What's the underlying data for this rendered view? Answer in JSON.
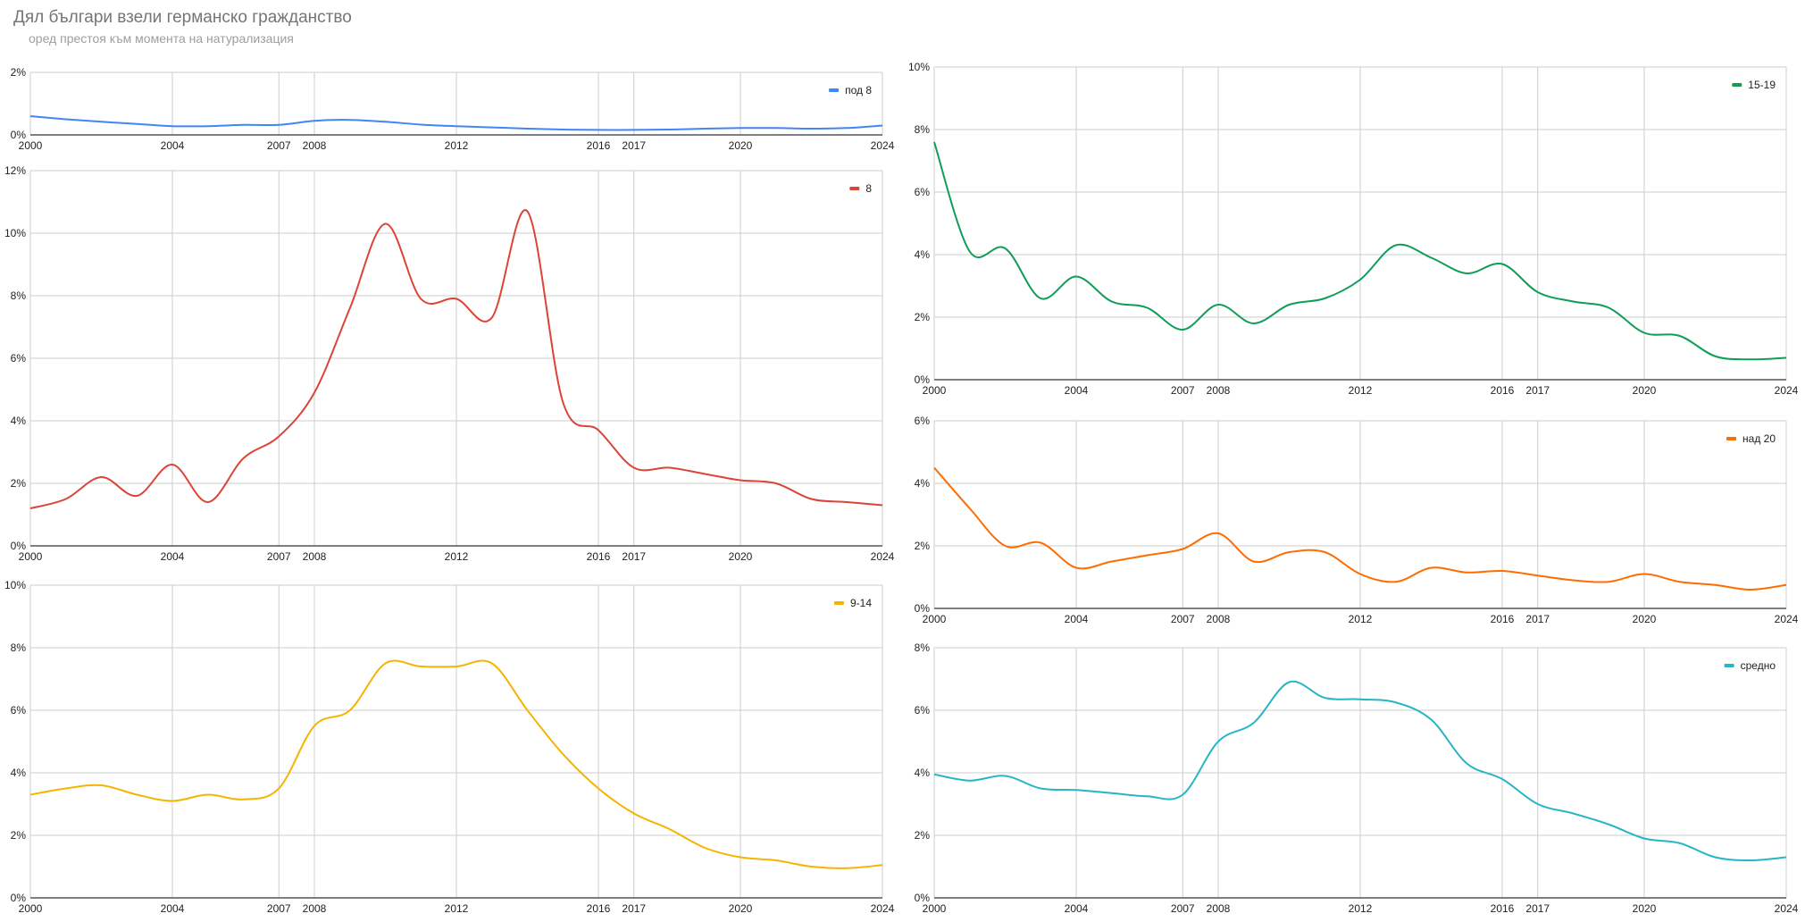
{
  "title": "Дял българи взели германско гражданство",
  "subtitle": "оред престоя към момента на натурализация",
  "colors": {
    "grid": "#cccccc",
    "axis": "#333333"
  },
  "chart_data": [
    {
      "type": "line",
      "x": [
        2000,
        2001,
        2002,
        2003,
        2004,
        2005,
        2006,
        2007,
        2008,
        2009,
        2010,
        2011,
        2012,
        2013,
        2014,
        2015,
        2016,
        2017,
        2018,
        2019,
        2020,
        2021,
        2022,
        2023,
        2024
      ],
      "xticks": [
        2000,
        2004,
        2007,
        2008,
        2012,
        2016,
        2017,
        2020,
        2024
      ],
      "ylim": [
        0,
        2
      ],
      "yticks": [
        0,
        2
      ],
      "series": [
        {
          "name": "под 8",
          "color": "#4285f4",
          "values": [
            0.6,
            0.5,
            0.42,
            0.35,
            0.28,
            0.28,
            0.32,
            0.32,
            0.45,
            0.48,
            0.42,
            0.33,
            0.28,
            0.24,
            0.2,
            0.17,
            0.16,
            0.16,
            0.17,
            0.2,
            0.22,
            0.22,
            0.2,
            0.22,
            0.3
          ]
        }
      ],
      "legend": "top-right"
    },
    {
      "type": "line",
      "x": [
        2000,
        2001,
        2002,
        2003,
        2004,
        2005,
        2006,
        2007,
        2008,
        2009,
        2010,
        2011,
        2012,
        2013,
        2014,
        2015,
        2016,
        2017,
        2018,
        2019,
        2020,
        2021,
        2022,
        2023,
        2024
      ],
      "xticks": [
        2000,
        2004,
        2007,
        2008,
        2012,
        2016,
        2017,
        2020,
        2024
      ],
      "ylim": [
        0,
        12
      ],
      "yticks": [
        0,
        2,
        4,
        6,
        8,
        10,
        12
      ],
      "series": [
        {
          "name": "8",
          "color": "#db4437",
          "values": [
            1.2,
            1.5,
            2.2,
            1.6,
            2.6,
            1.4,
            2.8,
            3.5,
            4.9,
            7.6,
            10.3,
            7.9,
            7.9,
            7.3,
            10.7,
            4.6,
            3.7,
            2.5,
            2.5,
            2.3,
            2.1,
            2.0,
            1.5,
            1.4,
            1.3
          ]
        }
      ],
      "legend": "top-right"
    },
    {
      "type": "line",
      "x": [
        2000,
        2001,
        2002,
        2003,
        2004,
        2005,
        2006,
        2007,
        2008,
        2009,
        2010,
        2011,
        2012,
        2013,
        2014,
        2015,
        2016,
        2017,
        2018,
        2019,
        2020,
        2021,
        2022,
        2023,
        2024
      ],
      "xticks": [
        2000,
        2004,
        2007,
        2008,
        2012,
        2016,
        2017,
        2020,
        2024
      ],
      "ylim": [
        0,
        10
      ],
      "yticks": [
        0,
        2,
        4,
        6,
        8,
        10
      ],
      "series": [
        {
          "name": "9-14",
          "color": "#f4b400",
          "values": [
            3.3,
            3.5,
            3.6,
            3.3,
            3.1,
            3.3,
            3.15,
            3.5,
            5.5,
            6.0,
            7.5,
            7.4,
            7.4,
            7.5,
            6.0,
            4.6,
            3.5,
            2.7,
            2.2,
            1.6,
            1.3,
            1.2,
            1.0,
            0.95,
            1.05
          ]
        }
      ],
      "legend": "top-right"
    },
    {
      "type": "line",
      "x": [
        2000,
        2001,
        2002,
        2003,
        2004,
        2005,
        2006,
        2007,
        2008,
        2009,
        2010,
        2011,
        2012,
        2013,
        2014,
        2015,
        2016,
        2017,
        2018,
        2019,
        2020,
        2021,
        2022,
        2023,
        2024
      ],
      "xticks": [
        2000,
        2004,
        2007,
        2008,
        2012,
        2016,
        2017,
        2020,
        2024
      ],
      "ylim": [
        0,
        10
      ],
      "yticks": [
        0,
        2,
        4,
        6,
        8,
        10
      ],
      "series": [
        {
          "name": "15-19",
          "color": "#0f9d58",
          "values": [
            7.6,
            4.1,
            4.2,
            2.6,
            3.3,
            2.5,
            2.3,
            1.6,
            2.4,
            1.8,
            2.4,
            2.6,
            3.2,
            4.3,
            3.9,
            3.4,
            3.7,
            2.8,
            2.5,
            2.3,
            1.5,
            1.4,
            0.75,
            0.65,
            0.7
          ]
        }
      ],
      "legend": "top-right"
    },
    {
      "type": "line",
      "x": [
        2000,
        2001,
        2002,
        2003,
        2004,
        2005,
        2006,
        2007,
        2008,
        2009,
        2010,
        2011,
        2012,
        2013,
        2014,
        2015,
        2016,
        2017,
        2018,
        2019,
        2020,
        2021,
        2022,
        2023,
        2024
      ],
      "xticks": [
        2000,
        2004,
        2007,
        2008,
        2012,
        2016,
        2017,
        2020,
        2024
      ],
      "ylim": [
        0,
        6
      ],
      "yticks": [
        0,
        2,
        4,
        6
      ],
      "series": [
        {
          "name": "над 20",
          "color": "#ff6d00",
          "values": [
            4.5,
            3.2,
            2.0,
            2.1,
            1.3,
            1.5,
            1.7,
            1.9,
            2.4,
            1.5,
            1.8,
            1.8,
            1.1,
            0.85,
            1.3,
            1.15,
            1.2,
            1.05,
            0.9,
            0.85,
            1.1,
            0.85,
            0.75,
            0.6,
            0.75
          ]
        }
      ],
      "legend": "top-right"
    },
    {
      "type": "line",
      "x": [
        2000,
        2001,
        2002,
        2003,
        2004,
        2005,
        2006,
        2007,
        2008,
        2009,
        2010,
        2011,
        2012,
        2013,
        2014,
        2015,
        2016,
        2017,
        2018,
        2019,
        2020,
        2021,
        2022,
        2023,
        2024
      ],
      "xticks": [
        2000,
        2004,
        2007,
        2008,
        2012,
        2016,
        2017,
        2020,
        2024
      ],
      "ylim": [
        0,
        8
      ],
      "yticks": [
        0,
        2,
        4,
        6,
        8
      ],
      "series": [
        {
          "name": "средно",
          "color": "#26b6c6",
          "values": [
            3.95,
            3.75,
            3.9,
            3.5,
            3.45,
            3.35,
            3.25,
            3.3,
            5.0,
            5.6,
            6.9,
            6.4,
            6.35,
            6.25,
            5.7,
            4.3,
            3.8,
            3.0,
            2.7,
            2.35,
            1.9,
            1.75,
            1.3,
            1.2,
            1.3
          ]
        }
      ],
      "legend": "top-right"
    }
  ]
}
